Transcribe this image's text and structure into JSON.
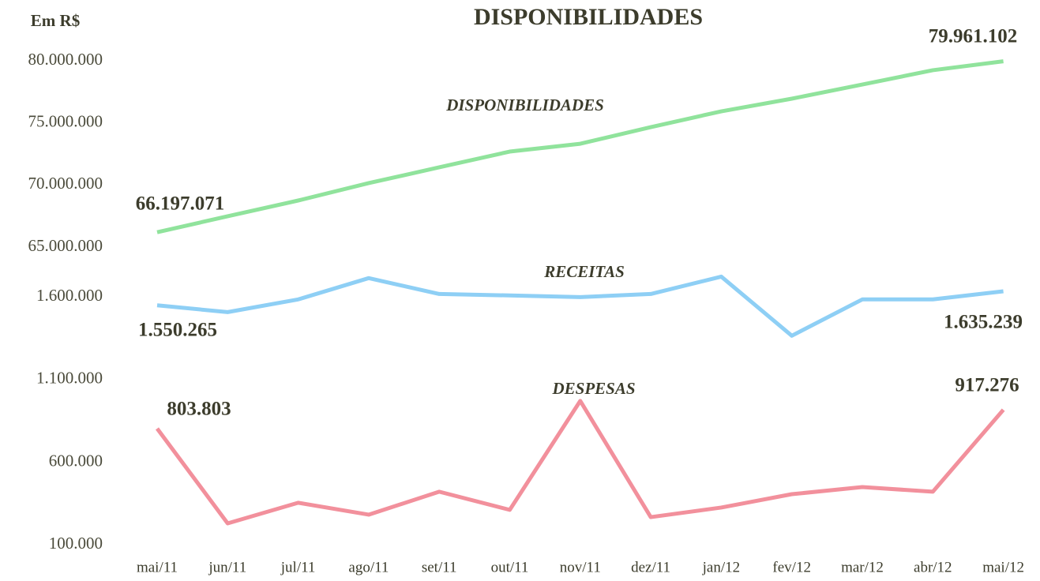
{
  "chart_data": {
    "type": "line",
    "title": "DISPONIBILIDADES",
    "unit_label": "Em R$",
    "categories": [
      "mai/11",
      "jun/11",
      "jul/11",
      "ago/11",
      "set/11",
      "out/11",
      "nov/11",
      "dez/11",
      "jan/12",
      "fev/12",
      "mar/12",
      "abr/12",
      "mai/12"
    ],
    "panels": [
      {
        "ylim": [
          65000000,
          80000000
        ],
        "yticks": [
          {
            "value": 65000000,
            "label": "65.000.000"
          },
          {
            "value": 70000000,
            "label": "70.000.000"
          },
          {
            "value": 75000000,
            "label": "75.000.000"
          },
          {
            "value": 80000000,
            "label": "80.000.000"
          }
        ],
        "series": [
          {
            "name": "DISPONIBILIDADES",
            "color": "#90e39c",
            "values": [
              66197071,
              67480000,
              68750000,
              70150000,
              71420000,
              72690000,
              73320000,
              74660000,
              75930000,
              76950000,
              78090000,
              79240000,
              79961102
            ],
            "value_labels": [
              "66.197.071",
              null,
              null,
              null,
              null,
              null,
              null,
              null,
              null,
              null,
              null,
              null,
              "79.961.102"
            ]
          }
        ]
      },
      {
        "ylim": [
          100000,
          1750000
        ],
        "yticks": [
          {
            "value": 100000,
            "label": "100.000"
          },
          {
            "value": 600000,
            "label": "600.000"
          },
          {
            "value": 1100000,
            "label": "1.100.000"
          },
          {
            "value": 1600000,
            "label": "1.600.000"
          }
        ],
        "series": [
          {
            "name": "RECEITAS",
            "color": "#8ecff5",
            "values": [
              1550265,
              1509000,
              1586000,
              1715000,
              1619000,
              1610000,
              1600000,
              1619000,
              1724000,
              1366000,
              1586000,
              1586000,
              1635239
            ],
            "value_labels": [
              "1.550.265",
              null,
              null,
              null,
              null,
              null,
              null,
              null,
              null,
              null,
              null,
              null,
              "1.635.239"
            ]
          },
          {
            "name": "DESPESAS",
            "color": "#f2909c",
            "values": [
              803803,
              229000,
              354000,
              282000,
              421000,
              311000,
              971000,
              267000,
              325000,
              406000,
              449000,
              421000,
              917276
            ],
            "value_labels": [
              "803.803",
              null,
              null,
              null,
              null,
              null,
              null,
              null,
              null,
              null,
              null,
              null,
              "917.276"
            ]
          }
        ]
      }
    ]
  }
}
